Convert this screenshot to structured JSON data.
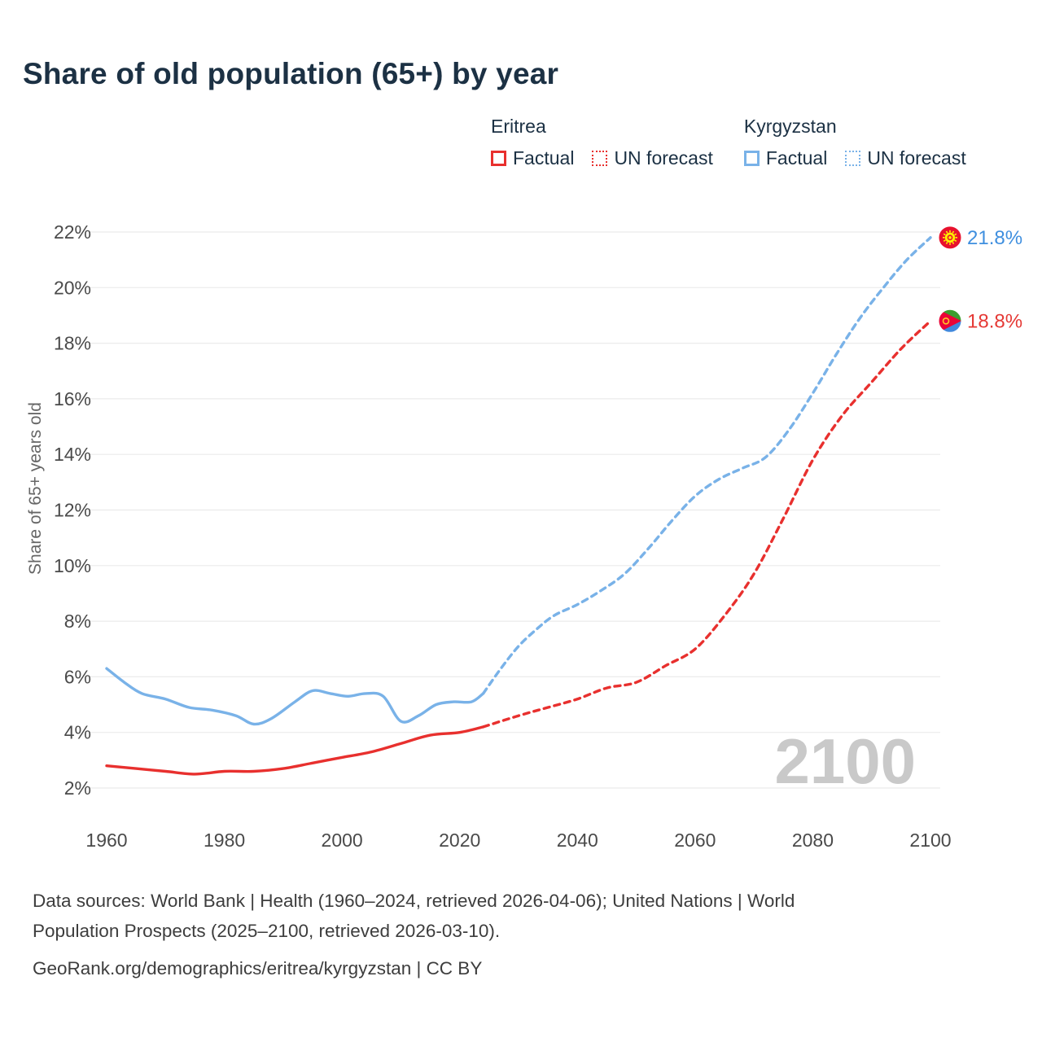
{
  "title": "Share of old population (65+) by year",
  "watermark": "2100",
  "legend": {
    "groups": [
      {
        "country": "Eritrea",
        "color": "#e8302e",
        "items": [
          {
            "label": "Factual",
            "style": "solid"
          },
          {
            "label": "UN forecast",
            "style": "dashed"
          }
        ]
      },
      {
        "country": "Kyrgyzstan",
        "color": "#79b2e8",
        "items": [
          {
            "label": "Factual",
            "style": "solid"
          },
          {
            "label": "UN forecast",
            "style": "dashed"
          }
        ]
      }
    ]
  },
  "footer": {
    "line1": "Data sources: World Bank | Health (1960–2024, retrieved 2026-04-06); United Nations | World",
    "line2": "Population Prospects (2025–2100, retrieved 2026-03-10).",
    "line3": "GeoRank.org/demographics/eritrea/kyrgyzstan | CC BY"
  },
  "chart_data": {
    "type": "line",
    "title": "Share of old population (65+) by year",
    "xlabel": "",
    "ylabel": "Share of 65+ years old",
    "xlim": [
      1960,
      2100
    ],
    "ylim": [
      2,
      22
    ],
    "yticks": [
      2,
      4,
      6,
      8,
      10,
      12,
      14,
      16,
      18,
      20,
      22
    ],
    "ytick_suffix": "%",
    "xticks": [
      1960,
      1980,
      2000,
      2020,
      2040,
      2060,
      2080,
      2100
    ],
    "grid": "horizontal",
    "forecast_start": 2024,
    "series": [
      {
        "name": "Kyrgyzstan",
        "flag": "kyrgyzstan",
        "color": "#79b2e8",
        "label_color": "#3f8fdf",
        "end_label": "21.8%",
        "flag_colors": {
          "field": "#e8112d",
          "sun": "#ffef00"
        },
        "factual": [
          [
            1960,
            6.3
          ],
          [
            1963,
            5.8
          ],
          [
            1966,
            5.4
          ],
          [
            1970,
            5.2
          ],
          [
            1974,
            4.9
          ],
          [
            1978,
            4.8
          ],
          [
            1982,
            4.6
          ],
          [
            1985,
            4.3
          ],
          [
            1988,
            4.5
          ],
          [
            1992,
            5.1
          ],
          [
            1995,
            5.5
          ],
          [
            1998,
            5.4
          ],
          [
            2001,
            5.3
          ],
          [
            2004,
            5.4
          ],
          [
            2007,
            5.3
          ],
          [
            2010,
            4.4
          ],
          [
            2013,
            4.6
          ],
          [
            2016,
            5.0
          ],
          [
            2019,
            5.1
          ],
          [
            2022,
            5.1
          ],
          [
            2024,
            5.4
          ]
        ],
        "forecast": [
          [
            2024,
            5.4
          ],
          [
            2027,
            6.3
          ],
          [
            2030,
            7.1
          ],
          [
            2033,
            7.7
          ],
          [
            2036,
            8.2
          ],
          [
            2040,
            8.6
          ],
          [
            2044,
            9.1
          ],
          [
            2048,
            9.7
          ],
          [
            2052,
            10.6
          ],
          [
            2056,
            11.6
          ],
          [
            2060,
            12.5
          ],
          [
            2064,
            13.1
          ],
          [
            2068,
            13.5
          ],
          [
            2072,
            13.9
          ],
          [
            2076,
            14.9
          ],
          [
            2080,
            16.2
          ],
          [
            2084,
            17.6
          ],
          [
            2088,
            18.9
          ],
          [
            2092,
            20.0
          ],
          [
            2096,
            21.0
          ],
          [
            2100,
            21.8
          ]
        ]
      },
      {
        "name": "Eritrea",
        "flag": "eritrea",
        "color": "#e8302e",
        "label_color": "#e53935",
        "end_label": "18.8%",
        "flag_colors": {
          "green": "#3c9d2f",
          "blue": "#4189dd",
          "red": "#ea0437",
          "gold": "#ffc726"
        },
        "factual": [
          [
            1960,
            2.8
          ],
          [
            1965,
            2.7
          ],
          [
            1970,
            2.6
          ],
          [
            1975,
            2.5
          ],
          [
            1980,
            2.6
          ],
          [
            1985,
            2.6
          ],
          [
            1990,
            2.7
          ],
          [
            1995,
            2.9
          ],
          [
            2000,
            3.1
          ],
          [
            2005,
            3.3
          ],
          [
            2010,
            3.6
          ],
          [
            2015,
            3.9
          ],
          [
            2020,
            4.0
          ],
          [
            2024,
            4.2
          ]
        ],
        "forecast": [
          [
            2024,
            4.2
          ],
          [
            2030,
            4.6
          ],
          [
            2035,
            4.9
          ],
          [
            2040,
            5.2
          ],
          [
            2045,
            5.6
          ],
          [
            2050,
            5.8
          ],
          [
            2055,
            6.4
          ],
          [
            2060,
            7.0
          ],
          [
            2065,
            8.2
          ],
          [
            2070,
            9.7
          ],
          [
            2075,
            11.7
          ],
          [
            2080,
            13.8
          ],
          [
            2085,
            15.4
          ],
          [
            2090,
            16.6
          ],
          [
            2095,
            17.8
          ],
          [
            2100,
            18.8
          ]
        ]
      }
    ]
  }
}
